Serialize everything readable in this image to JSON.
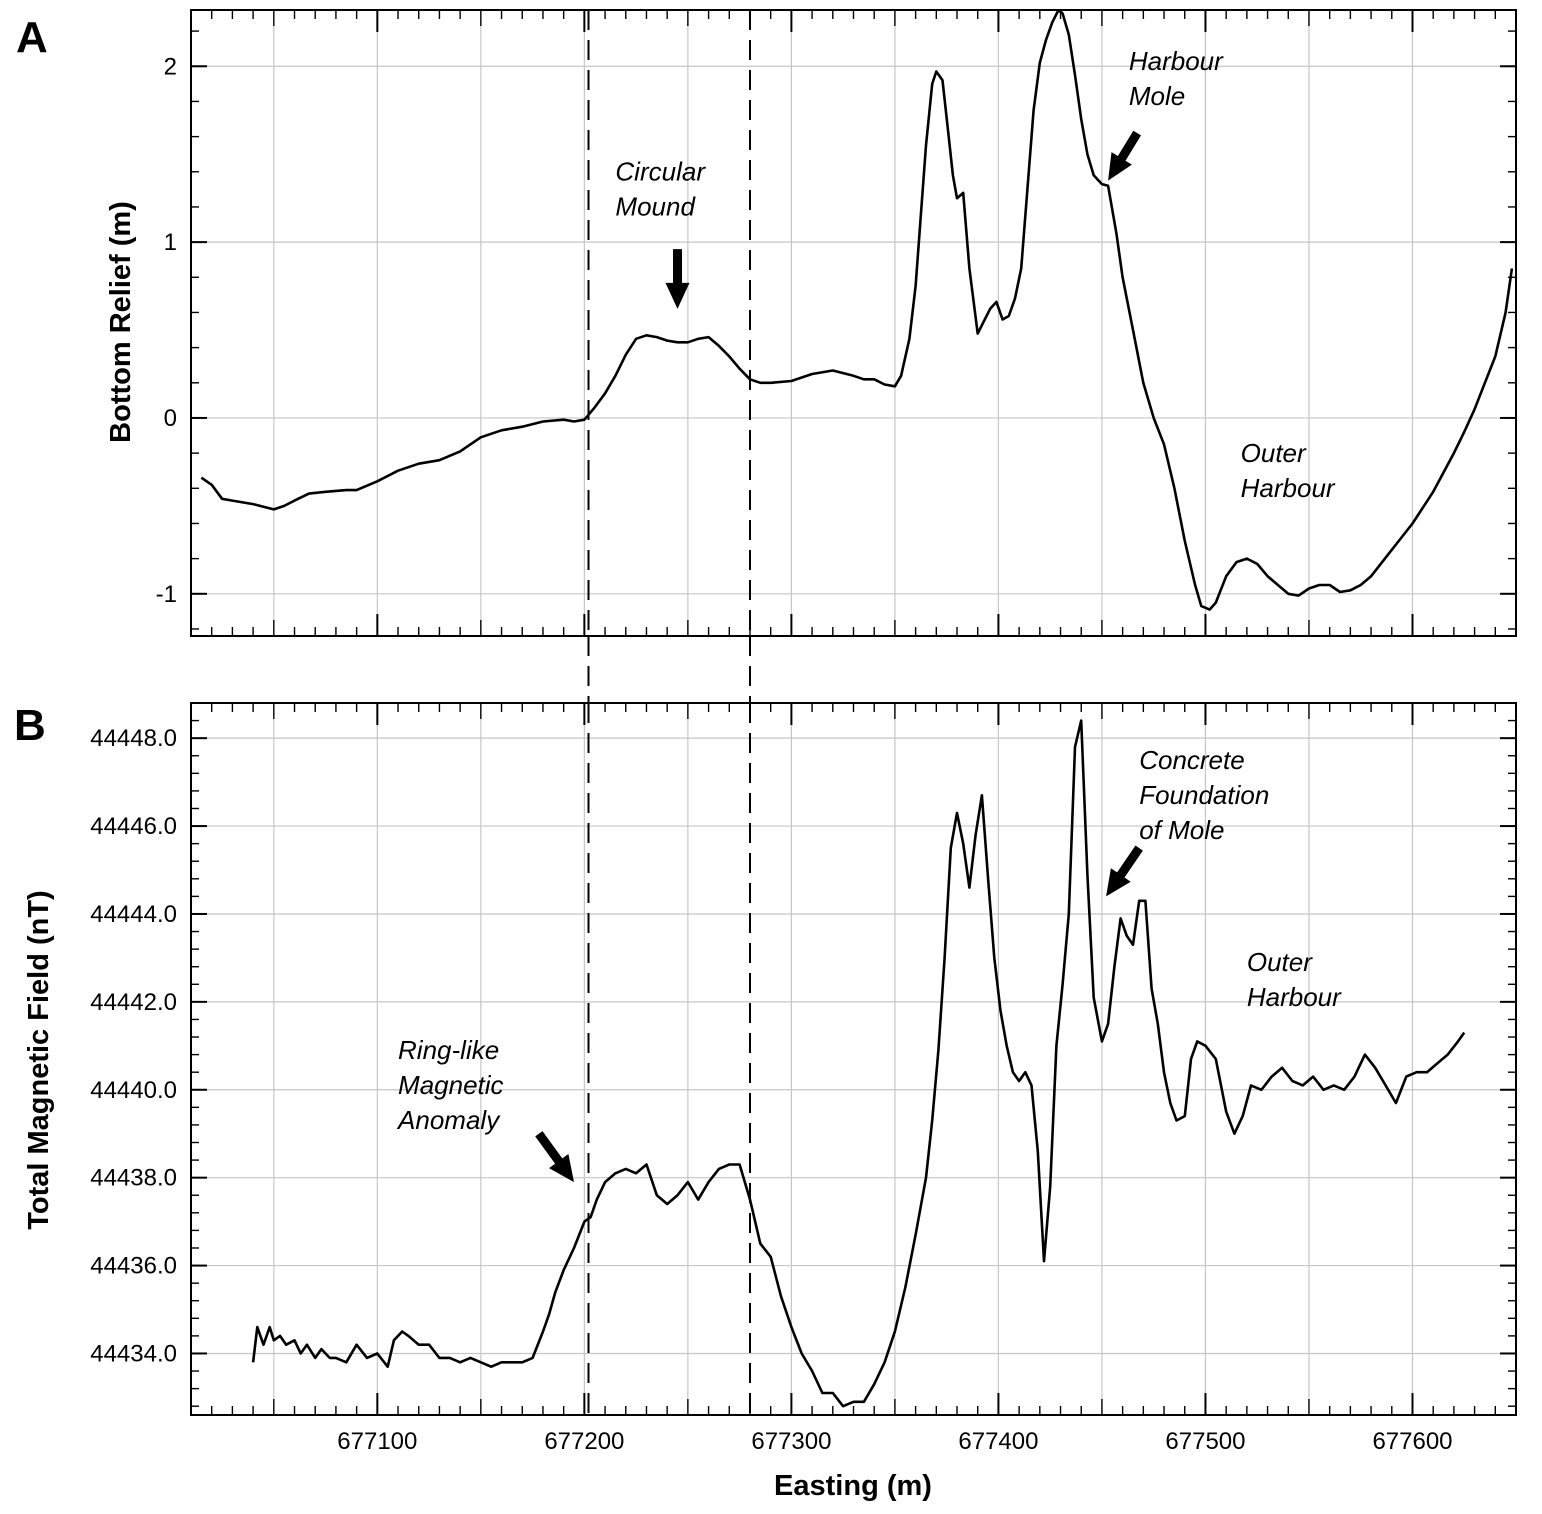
{
  "chart_data": [
    {
      "panel_label": "A",
      "type": "line",
      "xlabel": "",
      "ylabel": "Bottom Relief (m)",
      "xlim": [
        677010,
        677650
      ],
      "ylim": [
        -1.24,
        2.32
      ],
      "x_ticks": [
        677100,
        677200,
        677300,
        677400,
        677500,
        677600
      ],
      "y_ticks": [
        -1,
        0,
        1,
        2
      ],
      "y_tick_labels": [
        "-1",
        "0",
        "1",
        "2"
      ],
      "grid": true,
      "series": [
        {
          "x": [
            677015,
            677020,
            677025,
            677030,
            677040,
            677050,
            677055,
            677060,
            677067,
            677075,
            677085,
            677090,
            677100,
            677110,
            677120,
            677130,
            677140,
            677150,
            677160,
            677170,
            677180,
            677190,
            677195,
            677200,
            677205,
            677210,
            677215,
            677220,
            677225,
            677230,
            677235,
            677240,
            677245,
            677250,
            677255,
            677260,
            677265,
            677270,
            677275,
            677280,
            677285,
            677290,
            677300,
            677310,
            677320,
            677330,
            677335,
            677340,
            677345,
            677350,
            677353,
            677357,
            677360,
            677365,
            677368,
            677370,
            677373,
            677376,
            677378,
            677380,
            677383,
            677386,
            677390,
            677393,
            677396,
            677399,
            677402,
            677405,
            677408,
            677411,
            677414,
            677417,
            677420,
            677423,
            677426,
            677429,
            677431,
            677434,
            677437,
            677440,
            677443,
            677446,
            677450,
            677453,
            677457,
            677460,
            677465,
            677470,
            677475,
            677480,
            677485,
            677490,
            677495,
            677498,
            677502,
            677505,
            677510,
            677515,
            677520,
            677525,
            677530,
            677535,
            677540,
            677545,
            677550,
            677555,
            677560,
            677565,
            677570,
            677575,
            677580,
            677590,
            677600,
            677610,
            677620,
            677625,
            677630,
            677635,
            677640,
            677645,
            677648
          ],
          "y": [
            -0.34,
            -0.38,
            -0.46,
            -0.47,
            -0.49,
            -0.52,
            -0.5,
            -0.47,
            -0.43,
            -0.42,
            -0.41,
            -0.41,
            -0.36,
            -0.3,
            -0.26,
            -0.24,
            -0.19,
            -0.11,
            -0.07,
            -0.05,
            -0.02,
            -0.01,
            -0.02,
            -0.01,
            0.06,
            0.14,
            0.24,
            0.36,
            0.45,
            0.47,
            0.46,
            0.44,
            0.43,
            0.43,
            0.45,
            0.46,
            0.41,
            0.35,
            0.28,
            0.22,
            0.2,
            0.2,
            0.21,
            0.25,
            0.27,
            0.24,
            0.22,
            0.22,
            0.19,
            0.18,
            0.24,
            0.45,
            0.75,
            1.55,
            1.9,
            1.97,
            1.92,
            1.6,
            1.38,
            1.25,
            1.28,
            0.85,
            0.48,
            0.55,
            0.62,
            0.66,
            0.56,
            0.58,
            0.68,
            0.85,
            1.3,
            1.75,
            2.02,
            2.15,
            2.25,
            2.32,
            2.3,
            2.18,
            1.95,
            1.7,
            1.5,
            1.38,
            1.33,
            1.32,
            1.05,
            0.8,
            0.5,
            0.2,
            0.0,
            -0.15,
            -0.4,
            -0.7,
            -0.95,
            -1.07,
            -1.09,
            -1.05,
            -0.9,
            -0.82,
            -0.8,
            -0.83,
            -0.9,
            -0.95,
            -1.0,
            -1.01,
            -0.97,
            -0.95,
            -0.95,
            -0.99,
            -0.98,
            -0.95,
            -0.9,
            -0.75,
            -0.6,
            -0.42,
            -0.2,
            -0.08,
            0.05,
            0.2,
            0.35,
            0.6,
            0.85
          ]
        }
      ],
      "vlines_dashed": [
        677202,
        677280
      ],
      "annotations": [
        {
          "lines": [
            "Circular",
            "Mound"
          ],
          "x": 677215,
          "y": 1.35,
          "arrow": {
            "x": 677245,
            "y": 0.62,
            "from_x": 677245,
            "from_y": 0.96
          }
        },
        {
          "lines": [
            "Harbour",
            "Mole"
          ],
          "x": 677463,
          "y": 1.98,
          "arrow": {
            "x": 677453,
            "y": 1.35,
            "from_x": 677467,
            "from_y": 1.62
          }
        },
        {
          "lines": [
            "Outer",
            "Harbour"
          ],
          "x": 677517,
          "y": -0.25
        }
      ]
    },
    {
      "panel_label": "B",
      "type": "line",
      "xlabel": "Easting (m)",
      "ylabel": "Total Magnetic Field (nT)",
      "xlim": [
        677010,
        677650
      ],
      "ylim": [
        44432.6,
        44448.8
      ],
      "x_ticks": [
        677100,
        677200,
        677300,
        677400,
        677500,
        677600
      ],
      "x_tick_labels": [
        "677100",
        "677200",
        "677300",
        "677400",
        "677500",
        "677600"
      ],
      "y_ticks": [
        44434,
        44436,
        44438,
        44440,
        44442,
        44444,
        44446,
        44448
      ],
      "y_tick_labels": [
        "44434.0",
        "44436.0",
        "44438.0",
        "44440.0",
        "44442.0",
        "44444.0",
        "44446.0",
        "44448.0"
      ],
      "grid": true,
      "series": [
        {
          "x": [
            677040,
            677042,
            677045,
            677048,
            677050,
            677053,
            677056,
            677060,
            677063,
            677066,
            677070,
            677073,
            677077,
            677080,
            677085,
            677090,
            677095,
            677100,
            677105,
            677108,
            677112,
            677115,
            677120,
            677125,
            677130,
            677135,
            677140,
            677145,
            677150,
            677155,
            677160,
            677165,
            677170,
            677175,
            677180,
            677183,
            677186,
            677190,
            677195,
            677200,
            677203,
            677206,
            677210,
            677215,
            677220,
            677225,
            677230,
            677235,
            677240,
            677245,
            677250,
            677255,
            677260,
            677265,
            677270,
            677275,
            677280,
            677285,
            677290,
            677295,
            677300,
            677305,
            677310,
            677315,
            677320,
            677325,
            677330,
            677335,
            677340,
            677345,
            677350,
            677355,
            677360,
            677365,
            677368,
            677371,
            677374,
            677377,
            677380,
            677383,
            677386,
            677389,
            677392,
            677395,
            677398,
            677401,
            677404,
            677407,
            677410,
            677413,
            677416,
            677419,
            677422,
            677425,
            677428,
            677431,
            677434,
            677437,
            677440,
            677443,
            677446,
            677450,
            677453,
            677456,
            677459,
            677462,
            677465,
            677468,
            677471,
            677474,
            677477,
            677480,
            677483,
            677486,
            677490,
            677493,
            677496,
            677500,
            677505,
            677510,
            677514,
            677518,
            677522,
            677527,
            677532,
            677537,
            677542,
            677547,
            677552,
            677557,
            677562,
            677567,
            677572,
            677577,
            677582,
            677587,
            677592,
            677597,
            677602,
            677607,
            677612,
            677617,
            677622,
            677625
          ],
          "y": [
            44433.8,
            44434.6,
            44434.2,
            44434.6,
            44434.3,
            44434.4,
            44434.2,
            44434.3,
            44434.0,
            44434.2,
            44433.9,
            44434.1,
            44433.9,
            44433.9,
            44433.8,
            44434.2,
            44433.9,
            44434.0,
            44433.7,
            44434.3,
            44434.5,
            44434.4,
            44434.2,
            44434.2,
            44433.9,
            44433.9,
            44433.8,
            44433.9,
            44433.8,
            44433.7,
            44433.8,
            44433.8,
            44433.8,
            44433.9,
            44434.5,
            44434.9,
            44435.4,
            44435.9,
            44436.4,
            44437.0,
            44437.1,
            44437.5,
            44437.9,
            44438.1,
            44438.2,
            44438.1,
            44438.3,
            44437.6,
            44437.4,
            44437.6,
            44437.9,
            44437.5,
            44437.9,
            44438.2,
            44438.3,
            44438.3,
            44437.5,
            44436.5,
            44436.2,
            44435.3,
            44434.6,
            44434.0,
            44433.6,
            44433.1,
            44433.1,
            44432.8,
            44432.9,
            44432.9,
            44433.3,
            44433.8,
            44434.5,
            44435.5,
            44436.7,
            44438.0,
            44439.3,
            44440.9,
            44443.0,
            44445.5,
            44446.3,
            44445.6,
            44444.6,
            44445.8,
            44446.7,
            44444.8,
            44443.0,
            44441.8,
            44441.0,
            44440.4,
            44440.2,
            44440.4,
            44440.1,
            44438.6,
            44436.1,
            44437.8,
            44441.0,
            44442.4,
            44444.0,
            44447.8,
            44448.4,
            44444.9,
            44442.1,
            44441.1,
            44441.5,
            44442.8,
            44443.9,
            44443.5,
            44443.3,
            44444.3,
            44444.3,
            44442.3,
            44441.5,
            44440.4,
            44439.7,
            44439.3,
            44439.4,
            44440.7,
            44441.1,
            44441.0,
            44440.7,
            44439.5,
            44439.0,
            44439.4,
            44440.1,
            44440.0,
            44440.3,
            44440.5,
            44440.2,
            44440.1,
            44440.3,
            44440.0,
            44440.1,
            44440.0,
            44440.3,
            44440.8,
            44440.5,
            44440.1,
            44439.7,
            44440.3,
            44440.4,
            44440.4,
            44440.6,
            44440.8,
            44441.1,
            44441.3
          ]
        }
      ],
      "vlines_dashed": [
        677202,
        677280
      ],
      "annotations": [
        {
          "lines": [
            "Ring-like",
            "Magnetic",
            "Anomaly"
          ],
          "x": 677110,
          "y": 44440.7,
          "arrow": {
            "x": 677195,
            "y": 44437.9,
            "from_x": 677178,
            "from_y": 44439.0
          }
        },
        {
          "lines": [
            "Concrete",
            "Foundation",
            "of Mole"
          ],
          "x": 677468,
          "y": 44447.3,
          "arrow": {
            "x": 677452,
            "y": 44444.4,
            "from_x": 677468,
            "from_y": 44445.5
          }
        },
        {
          "lines": [
            "Outer",
            "Harbour"
          ],
          "x": 677520,
          "y": 44442.7
        }
      ]
    }
  ]
}
